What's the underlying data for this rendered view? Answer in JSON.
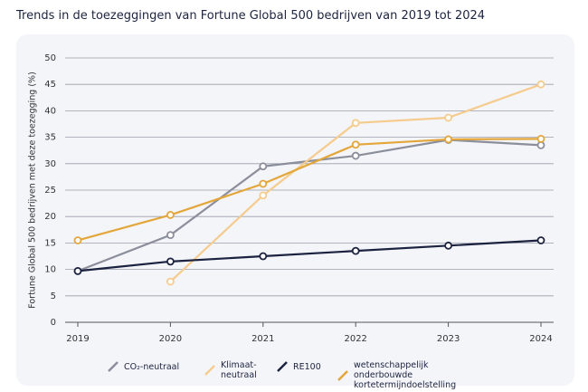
{
  "chart_data": {
    "type": "line",
    "title": "Trends in de toezeggingen van Fortune Global 500 bedrijven van 2019 tot 2024",
    "y_label": "Fortune Global 500 bedrijven met deze toezegging (%)",
    "categories": [
      "2019",
      "2020",
      "2021",
      "2022",
      "2023",
      "2024"
    ],
    "series": [
      {
        "name": "CO₂-neutraal",
        "color": "#8b8e9b",
        "values": [
          9.7,
          16.5,
          29.5,
          31.5,
          34.5,
          33.5
        ]
      },
      {
        "name": "Klimaat-neutraal",
        "color": "#f5cb8e",
        "values": [
          null,
          7.7,
          24,
          37.7,
          38.7,
          45
        ]
      },
      {
        "name": "RE100",
        "color": "#1c2340",
        "values": [
          9.7,
          11.5,
          12.5,
          13.5,
          14.5,
          15.5
        ]
      },
      {
        "name": "wetenschappelijk onderbouwde kortetermijndoelstelling",
        "color": "#e3a63a",
        "values": [
          15.5,
          20.3,
          26.2,
          33.6,
          34.6,
          34.7
        ]
      }
    ],
    "ylim": [
      0,
      50
    ],
    "yticks": [
      0,
      5,
      10,
      15,
      20,
      25,
      30,
      35,
      40,
      45,
      50
    ],
    "grid": true
  }
}
